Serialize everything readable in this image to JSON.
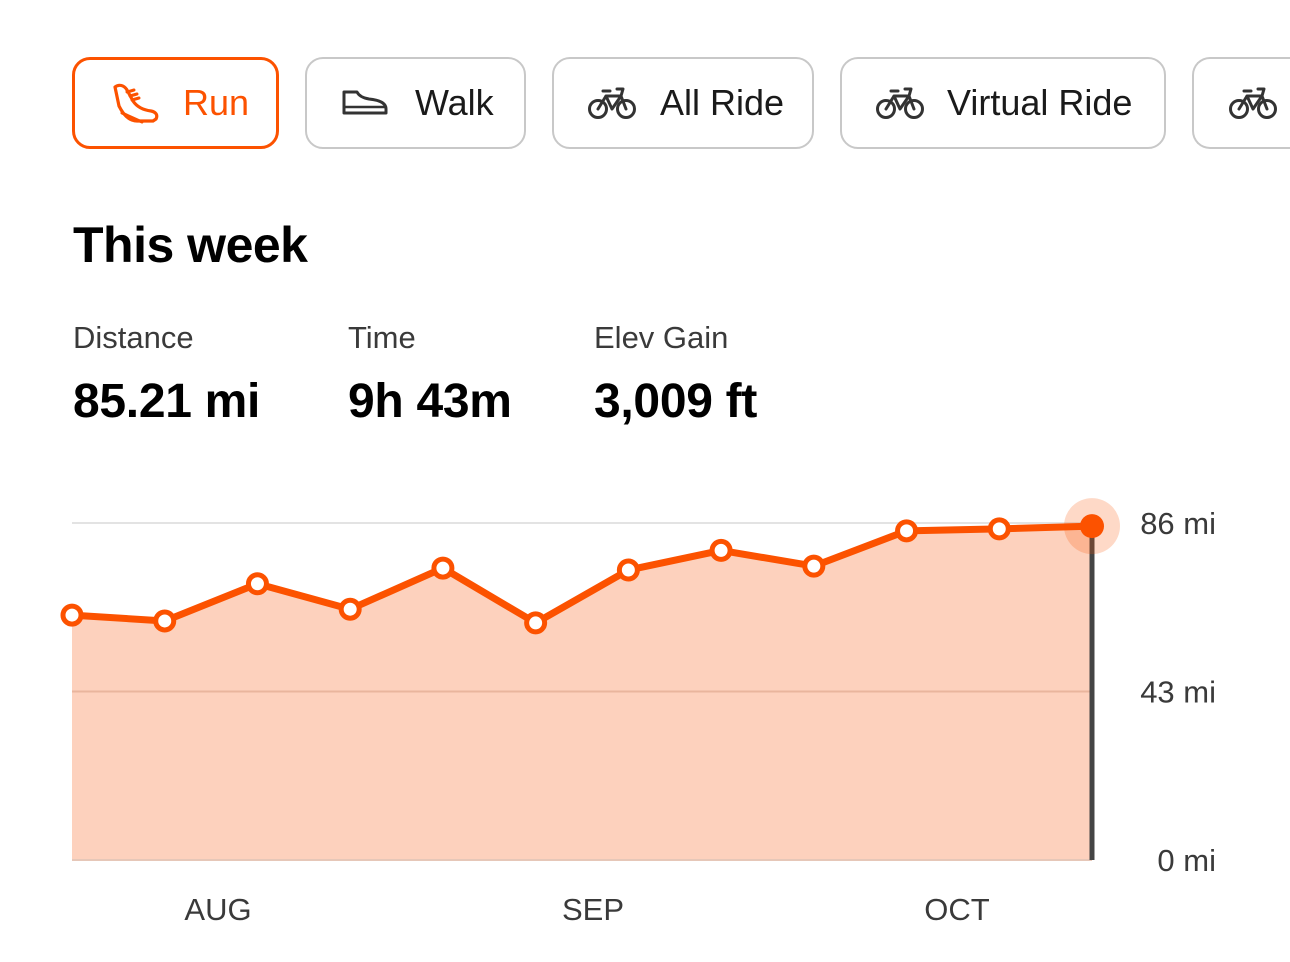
{
  "tabs": [
    {
      "label": "Run",
      "icon": "running-shoe-icon",
      "active": true
    },
    {
      "label": "Walk",
      "icon": "walking-shoe-icon",
      "active": false
    },
    {
      "label": "All Ride",
      "icon": "bicycle-icon",
      "active": false
    },
    {
      "label": "Virtual Ride",
      "icon": "bicycle-icon",
      "active": false
    },
    {
      "label": "",
      "icon": "bicycle-icon",
      "active": false
    }
  ],
  "colors": {
    "accent": "#fc5200",
    "fill": "#fdd1bd",
    "border": "#c8c8c8",
    "current_line": "#444444"
  },
  "summary": {
    "title": "This week",
    "stats": [
      {
        "label": "Distance",
        "value": "85.21 mi"
      },
      {
        "label": "Time",
        "value": "9h 43m"
      },
      {
        "label": "Elev Gain",
        "value": "3,009 ft"
      }
    ]
  },
  "chart_data": {
    "type": "area",
    "x_tick_labels": [
      "AUG",
      "SEP",
      "OCT"
    ],
    "y_tick_labels": [
      "86 mi",
      "43 mi",
      "0 mi"
    ],
    "ylim": [
      0,
      86
    ],
    "values": [
      62.5,
      61,
      70.5,
      64,
      74.5,
      60.5,
      74,
      79,
      75,
      84,
      84.5,
      85.21
    ],
    "highlight_index": 11,
    "grid": true
  }
}
